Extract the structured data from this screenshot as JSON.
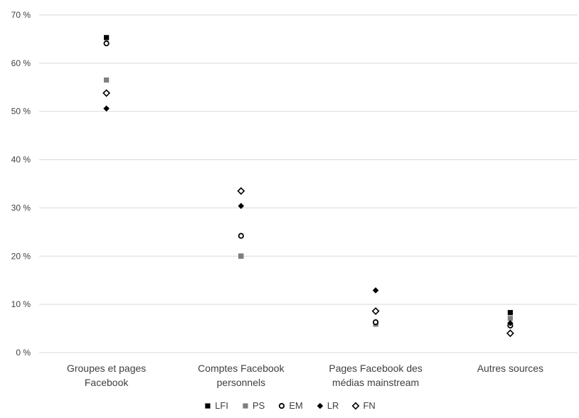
{
  "chart_data": {
    "type": "scatter",
    "categories": [
      [
        "Groupes et pages",
        "Facebook"
      ],
      [
        "Comptes Facebook",
        "personnels"
      ],
      [
        "Pages Facebook des",
        "médias mainstream"
      ],
      [
        "Autres sources"
      ]
    ],
    "ylim": [
      0,
      70
    ],
    "yticks": [
      "0 %",
      "10 %",
      "20 %",
      "30 %",
      "40 %",
      "50 %",
      "60 %",
      "70 %"
    ],
    "grid": true,
    "legend_position": "bottom",
    "series": [
      {
        "name": "LFI",
        "marker": "filled-square",
        "color": "#000000",
        "values": [
          65.3,
          20.0,
          6.0,
          8.3
        ]
      },
      {
        "name": "PS",
        "marker": "filled-square",
        "color": "#7f7f7f",
        "values": [
          56.5,
          20.0,
          5.9,
          7.1
        ]
      },
      {
        "name": "EM",
        "marker": "open-circle",
        "color": "#000000",
        "values": [
          64.1,
          24.2,
          6.3,
          5.6
        ]
      },
      {
        "name": "LR",
        "marker": "filled-diamond",
        "color": "#000000",
        "values": [
          50.6,
          30.4,
          12.9,
          6.1
        ]
      },
      {
        "name": "FN",
        "marker": "open-diamond",
        "color": "#000000",
        "values": [
          53.8,
          33.5,
          8.6,
          4.0
        ]
      }
    ]
  }
}
